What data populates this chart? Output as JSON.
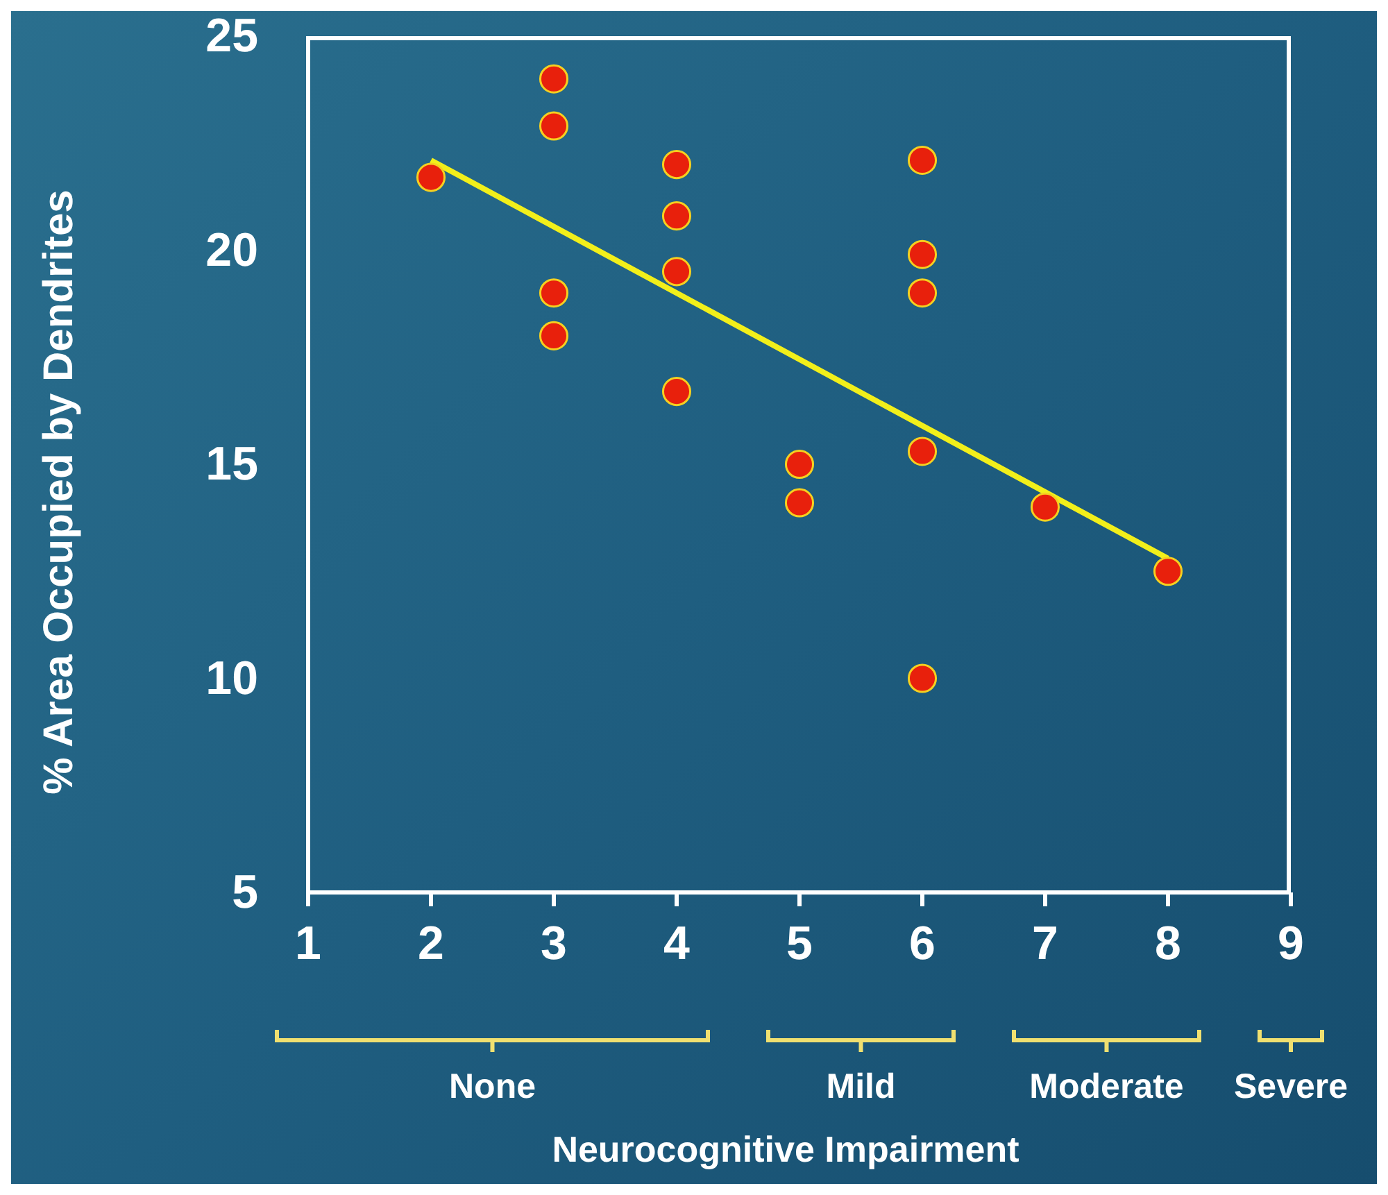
{
  "chart_data": {
    "type": "scatter",
    "xlabel": "Neurocognitive Impairment",
    "ylabel": "% Area Occupied by Dendrites",
    "series": [
      {
        "color": "#e8200c",
        "x": [
          2,
          3,
          3,
          3,
          3,
          4,
          4,
          4,
          4,
          5,
          5,
          6,
          6,
          6,
          6,
          6,
          7,
          8
        ],
        "values": [
          21.7,
          24.0,
          22.9,
          19.0,
          18.0,
          22.0,
          20.8,
          19.5,
          16.7,
          15.0,
          14.1,
          22.1,
          19.9,
          19.0,
          15.3,
          10.0,
          14.0,
          12.5
        ]
      },
      {
        "type": "line",
        "color": "#f2ef1a",
        "x": [
          2,
          8
        ],
        "values": [
          22.1,
          12.8
        ]
      }
    ],
    "xlim": [
      1,
      9
    ],
    "xticks": [
      1,
      2,
      3,
      4,
      5,
      6,
      7,
      8,
      9
    ],
    "ylim": [
      5,
      25
    ],
    "yticks": [
      5,
      10,
      15,
      20,
      25
    ],
    "grid": false,
    "legend": false,
    "line_style": "solid",
    "annotations": [
      "None",
      "Mild",
      "Moderate",
      "Severe"
    ]
  }
}
